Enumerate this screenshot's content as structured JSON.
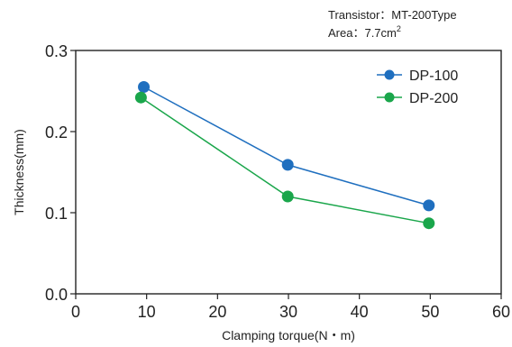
{
  "chart_data": {
    "type": "line",
    "annotations": {
      "line1": "Transistor：MT-200Type",
      "line2_prefix": "Area：7.7cm",
      "line2_sup": "2"
    },
    "xlabel": "Clamping torque(N・m)",
    "ylabel": "Thickness(mm)",
    "xlim": [
      0,
      60
    ],
    "ylim": [
      0,
      0.3
    ],
    "xticks": [
      0,
      10,
      20,
      30,
      40,
      50,
      60
    ],
    "yticks": [
      0.0,
      0.1,
      0.2,
      0.3
    ],
    "xtick_labels": [
      "0",
      "10",
      "20",
      "30",
      "40",
      "50",
      "60"
    ],
    "ytick_labels": [
      "0.0",
      "0.1",
      "0.2",
      "0.3"
    ],
    "grid": false,
    "legend_position": "top-right",
    "series": [
      {
        "name": "DP-100",
        "color": "#1f6fbf",
        "x": [
          9.6,
          29.9,
          49.8
        ],
        "y": [
          0.255,
          0.159,
          0.109
        ]
      },
      {
        "name": "DP-200",
        "color": "#1aa64b",
        "x": [
          9.2,
          29.9,
          49.8
        ],
        "y": [
          0.242,
          0.12,
          0.087
        ]
      }
    ]
  }
}
